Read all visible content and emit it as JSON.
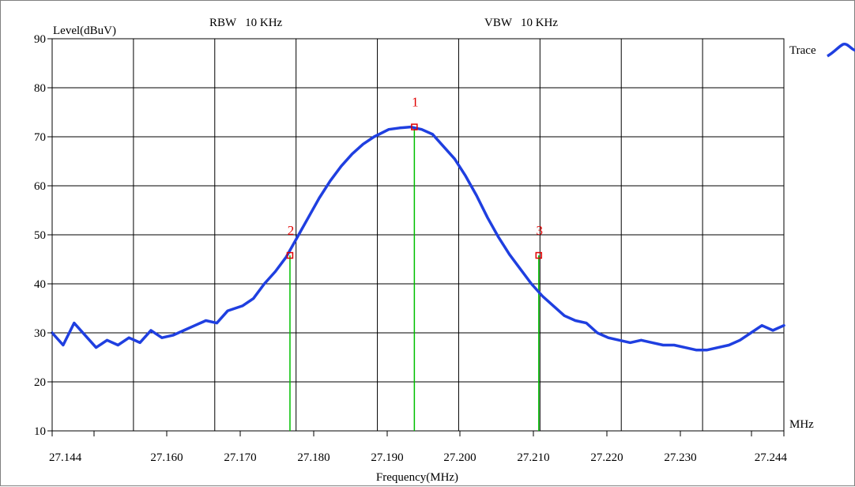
{
  "chart_data": {
    "type": "line",
    "ylabel": "Level(dBuV)",
    "xlabel": "Frequency(MHz)",
    "unit_label": "MHz",
    "rbw_text": "RBW   10 KHz",
    "vbw_text": "VBW   10 KHz",
    "xlim": [
      27.144,
      27.244
    ],
    "ylim": [
      10,
      90
    ],
    "x_ticks": [
      "27.144",
      "27.160",
      "27.170",
      "27.180",
      "27.190",
      "27.200",
      "27.210",
      "27.220",
      "27.230",
      "27.244"
    ],
    "y_ticks": [
      "10",
      "20",
      "30",
      "40",
      "50",
      "60",
      "70",
      "80",
      "90"
    ],
    "grid": true,
    "legend_position": "top-right",
    "series": [
      {
        "name": "Trace",
        "color": "#1f3fe0",
        "x": [
          27.144,
          27.1455,
          27.147,
          27.1485,
          27.15,
          27.1515,
          27.153,
          27.1545,
          27.156,
          27.1575,
          27.159,
          27.1605,
          27.162,
          27.1635,
          27.165,
          27.1665,
          27.168,
          27.17,
          27.1715,
          27.173,
          27.1745,
          27.176,
          27.1775,
          27.179,
          27.1805,
          27.182,
          27.1835,
          27.185,
          27.1865,
          27.188,
          27.19,
          27.1915,
          27.193,
          27.1945,
          27.196,
          27.1975,
          27.199,
          27.2005,
          27.202,
          27.2035,
          27.205,
          27.2065,
          27.208,
          27.2095,
          27.211,
          27.2125,
          27.214,
          27.2155,
          27.217,
          27.2185,
          27.22,
          27.2215,
          27.223,
          27.2245,
          27.226,
          27.2275,
          27.229,
          27.2305,
          27.232,
          27.2335,
          27.235,
          27.2365,
          27.238,
          27.2395,
          27.241,
          27.2425,
          27.244
        ],
        "y": [
          30,
          27.5,
          32,
          29.5,
          27,
          28.5,
          27.5,
          29,
          28,
          30.5,
          29,
          29.5,
          30.5,
          31.5,
          32.5,
          32,
          34.5,
          35.5,
          37,
          40,
          42.5,
          45.5,
          49.5,
          53.5,
          57.5,
          61,
          64,
          66.5,
          68.5,
          70,
          71.5,
          71.8,
          72,
          71.5,
          70.5,
          68,
          65.5,
          62,
          58,
          53.5,
          49.5,
          46,
          43,
          40,
          37.5,
          35.5,
          33.5,
          32.5,
          32,
          30,
          29,
          28.5,
          28,
          28.5,
          28,
          27.5,
          27.5,
          27,
          26.5,
          26.5,
          27,
          27.5,
          28.5,
          30,
          31.5,
          30.5,
          31.5
        ]
      }
    ],
    "markers": [
      {
        "label": "1",
        "x": 27.1935,
        "y": 72
      },
      {
        "label": "2",
        "x": 27.1765,
        "y": 45.8
      },
      {
        "label": "3",
        "x": 27.2105,
        "y": 45.8
      }
    ],
    "marker_color": "#e00000",
    "marker_line_color": "#00c000",
    "grid_color": "#000000"
  }
}
